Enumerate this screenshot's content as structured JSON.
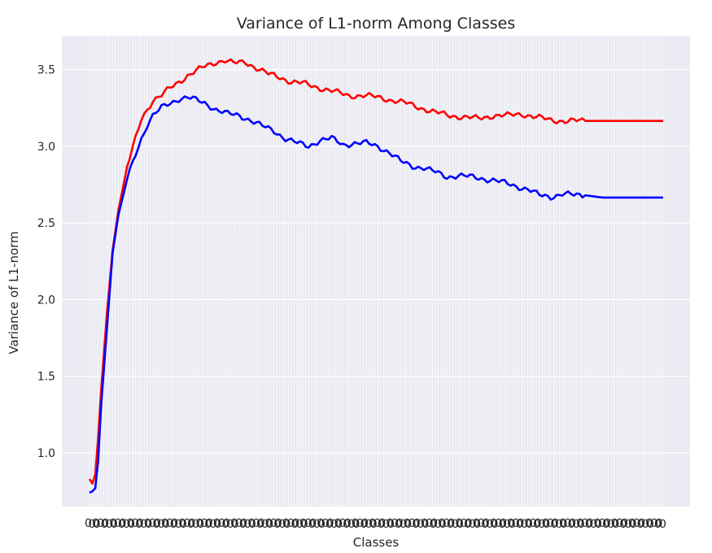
{
  "chart_data": {
    "type": "line",
    "title": "Variance of L1-norm Among Classes",
    "xlabel": "Classes",
    "ylabel": "Variance of L1-norm",
    "ylim": [
      0.65,
      3.72
    ],
    "yticks": [
      "1.0",
      "1.5",
      "2.0",
      "2.5",
      "3.0",
      "3.5"
    ],
    "x_count": 200,
    "x_tick_text": "0",
    "grid": true,
    "legend": "none",
    "colors": {
      "background": "#eaeaf2",
      "grid": "#ffffff"
    },
    "series": [
      {
        "color": "#ff0000",
        "anchors": [
          [
            0,
            0.83
          ],
          [
            1,
            0.8
          ],
          [
            2,
            0.86
          ],
          [
            3,
            1.1
          ],
          [
            4,
            1.4
          ],
          [
            6,
            1.9
          ],
          [
            8,
            2.32
          ],
          [
            10,
            2.58
          ],
          [
            13,
            2.86
          ],
          [
            16,
            3.05
          ],
          [
            18,
            3.18
          ],
          [
            20,
            3.24
          ],
          [
            22,
            3.3
          ],
          [
            25,
            3.33
          ],
          [
            28,
            3.38
          ],
          [
            31,
            3.42
          ],
          [
            34,
            3.46
          ],
          [
            37,
            3.49
          ],
          [
            40,
            3.52
          ],
          [
            44,
            3.55
          ],
          [
            47,
            3.56
          ],
          [
            50,
            3.54
          ],
          [
            54,
            3.55
          ],
          [
            58,
            3.51
          ],
          [
            62,
            3.47
          ],
          [
            66,
            3.45
          ],
          [
            70,
            3.42
          ],
          [
            74,
            3.41
          ],
          [
            78,
            3.39
          ],
          [
            82,
            3.37
          ],
          [
            86,
            3.35
          ],
          [
            90,
            3.33
          ],
          [
            95,
            3.33
          ],
          [
            100,
            3.32
          ],
          [
            105,
            3.3
          ],
          [
            110,
            3.28
          ],
          [
            115,
            3.25
          ],
          [
            120,
            3.22
          ],
          [
            125,
            3.2
          ],
          [
            130,
            3.19
          ],
          [
            135,
            3.18
          ],
          [
            140,
            3.2
          ],
          [
            145,
            3.2
          ],
          [
            150,
            3.21
          ],
          [
            155,
            3.19
          ],
          [
            160,
            3.17
          ],
          [
            165,
            3.165
          ],
          [
            170,
            3.165
          ],
          [
            180,
            3.165
          ],
          [
            199,
            3.165
          ]
        ]
      },
      {
        "color": "#0000ff",
        "anchors": [
          [
            0,
            0.74
          ],
          [
            1,
            0.75
          ],
          [
            2,
            0.77
          ],
          [
            3,
            0.95
          ],
          [
            4,
            1.3
          ],
          [
            6,
            1.8
          ],
          [
            8,
            2.3
          ],
          [
            10,
            2.55
          ],
          [
            13,
            2.78
          ],
          [
            16,
            2.95
          ],
          [
            18,
            3.05
          ],
          [
            20,
            3.14
          ],
          [
            22,
            3.2
          ],
          [
            25,
            3.25
          ],
          [
            28,
            3.28
          ],
          [
            31,
            3.31
          ],
          [
            34,
            3.32
          ],
          [
            37,
            3.3
          ],
          [
            40,
            3.28
          ],
          [
            44,
            3.24
          ],
          [
            48,
            3.21
          ],
          [
            52,
            3.2
          ],
          [
            56,
            3.17
          ],
          [
            60,
            3.13
          ],
          [
            64,
            3.1
          ],
          [
            68,
            3.05
          ],
          [
            72,
            3.02
          ],
          [
            76,
            3.0
          ],
          [
            80,
            3.04
          ],
          [
            84,
            3.05
          ],
          [
            88,
            3.01
          ],
          [
            92,
            3.02
          ],
          [
            96,
            3.02
          ],
          [
            100,
            3.0
          ],
          [
            104,
            2.96
          ],
          [
            108,
            2.9
          ],
          [
            112,
            2.87
          ],
          [
            116,
            2.86
          ],
          [
            120,
            2.83
          ],
          [
            124,
            2.8
          ],
          [
            128,
            2.81
          ],
          [
            132,
            2.8
          ],
          [
            136,
            2.79
          ],
          [
            140,
            2.78
          ],
          [
            144,
            2.76
          ],
          [
            148,
            2.74
          ],
          [
            152,
            2.72
          ],
          [
            156,
            2.68
          ],
          [
            160,
            2.67
          ],
          [
            164,
            2.69
          ],
          [
            168,
            2.68
          ],
          [
            172,
            2.68
          ],
          [
            178,
            2.665
          ],
          [
            199,
            2.665
          ]
        ]
      }
    ]
  }
}
